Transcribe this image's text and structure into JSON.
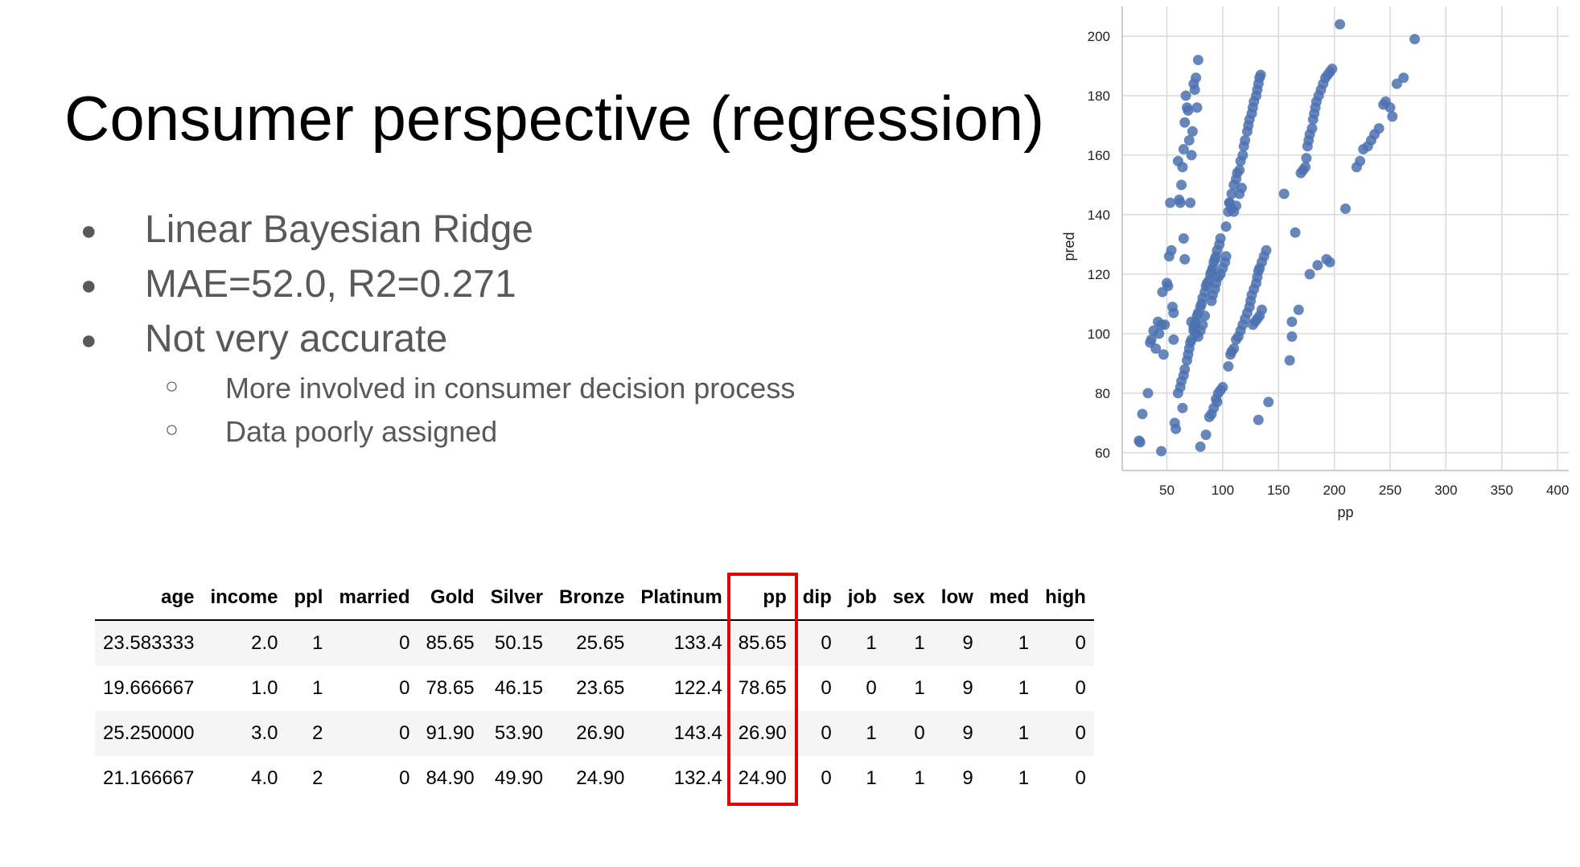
{
  "title": "Consumer perspective (regression)",
  "bullets": [
    {
      "marker": "●",
      "text": "Linear Bayesian Ridge"
    },
    {
      "marker": "●",
      "text": "MAE=52.0, R2=0.271"
    },
    {
      "marker": "●",
      "text": "Not very accurate"
    }
  ],
  "sub_bullets": [
    {
      "marker": "○",
      "text": "More involved in consumer decision process"
    },
    {
      "marker": "○",
      "text": "Data poorly assigned"
    }
  ],
  "table": {
    "columns": [
      "age",
      "income",
      "ppl",
      "married",
      "Gold",
      "Silver",
      "Bronze",
      "Platinum",
      "pp",
      "dip",
      "job",
      "sex",
      "low",
      "med",
      "high"
    ],
    "rows": [
      [
        "23.583333",
        "2.0",
        "1",
        "0",
        "85.65",
        "50.15",
        "25.65",
        "133.4",
        "85.65",
        "0",
        "1",
        "1",
        "9",
        "1",
        "0"
      ],
      [
        "19.666667",
        "1.0",
        "1",
        "0",
        "78.65",
        "46.15",
        "23.65",
        "122.4",
        "78.65",
        "0",
        "0",
        "1",
        "9",
        "1",
        "0"
      ],
      [
        "25.250000",
        "3.0",
        "2",
        "0",
        "91.90",
        "53.90",
        "26.90",
        "143.4",
        "26.90",
        "0",
        "1",
        "0",
        "9",
        "1",
        "0"
      ],
      [
        "21.166667",
        "4.0",
        "2",
        "0",
        "84.90",
        "49.90",
        "24.90",
        "132.4",
        "24.90",
        "0",
        "1",
        "1",
        "9",
        "1",
        "0"
      ]
    ],
    "highlighted_column": "pp",
    "highlight_color": "#e60000"
  },
  "chart_data": {
    "type": "scatter",
    "title": "",
    "xlabel": "pp",
    "ylabel": "pred",
    "xlim": [
      10,
      410
    ],
    "ylim": [
      54,
      210
    ],
    "xticks": [
      50,
      100,
      150,
      200,
      250,
      300,
      350,
      400
    ],
    "yticks": [
      60,
      80,
      100,
      120,
      140,
      160,
      180,
      200
    ],
    "grid": true,
    "point_color": "#4c72b0",
    "series": [
      {
        "points": [
          [
            25,
            64
          ],
          [
            26,
            63.5
          ],
          [
            28,
            73
          ],
          [
            33,
            80
          ],
          [
            35,
            97
          ],
          [
            36,
            98
          ],
          [
            38,
            101
          ],
          [
            40,
            95
          ],
          [
            42,
            104
          ],
          [
            43,
            100
          ],
          [
            45,
            103
          ],
          [
            46,
            114
          ],
          [
            47,
            93
          ],
          [
            48,
            103
          ],
          [
            50,
            117
          ],
          [
            51,
            116
          ],
          [
            52,
            126
          ],
          [
            53,
            144
          ],
          [
            54,
            128
          ],
          [
            55,
            109
          ],
          [
            56,
            107
          ],
          [
            56,
            98
          ],
          [
            57,
            70
          ],
          [
            58,
            68
          ],
          [
            45,
            60.5
          ],
          [
            60,
            158
          ],
          [
            61,
            145
          ],
          [
            62,
            144
          ],
          [
            63,
            150
          ],
          [
            64,
            156
          ],
          [
            65,
            162
          ],
          [
            66,
            171
          ],
          [
            67,
            180
          ],
          [
            68,
            176
          ],
          [
            69,
            175
          ],
          [
            70,
            165
          ],
          [
            71,
            144
          ],
          [
            72,
            160
          ],
          [
            73,
            168
          ],
          [
            74,
            184
          ],
          [
            75,
            182
          ],
          [
            76,
            186
          ],
          [
            77,
            176
          ],
          [
            78,
            192
          ],
          [
            64,
            75
          ],
          [
            65,
            132
          ],
          [
            66,
            125
          ],
          [
            60,
            80
          ],
          [
            62,
            82
          ],
          [
            63,
            84
          ],
          [
            65,
            86
          ],
          [
            66,
            88
          ],
          [
            68,
            91
          ],
          [
            69,
            93
          ],
          [
            70,
            95
          ],
          [
            71,
            97
          ],
          [
            72,
            98
          ],
          [
            74,
            101
          ],
          [
            75,
            103
          ],
          [
            76,
            104
          ],
          [
            77,
            106
          ],
          [
            78,
            107
          ],
          [
            80,
            109
          ],
          [
            81,
            110
          ],
          [
            82,
            112
          ],
          [
            84,
            114
          ],
          [
            85,
            116
          ],
          [
            86,
            117
          ],
          [
            88,
            118
          ],
          [
            89,
            120
          ],
          [
            90,
            121
          ],
          [
            91,
            122
          ],
          [
            92,
            124
          ],
          [
            93,
            125
          ],
          [
            94,
            126
          ],
          [
            95,
            128
          ],
          [
            97,
            130
          ],
          [
            98,
            132
          ],
          [
            72,
            104
          ],
          [
            74,
            102
          ],
          [
            76,
            100
          ],
          [
            78,
            99
          ],
          [
            80,
            101
          ],
          [
            82,
            103
          ],
          [
            84,
            106
          ],
          [
            90,
            111
          ],
          [
            91,
            113
          ],
          [
            93,
            115
          ],
          [
            94,
            117
          ],
          [
            96,
            119
          ],
          [
            98,
            120
          ],
          [
            100,
            122
          ],
          [
            102,
            124
          ],
          [
            103,
            126
          ],
          [
            103,
            136
          ],
          [
            105,
            141
          ],
          [
            106,
            144
          ],
          [
            108,
            147
          ],
          [
            110,
            150
          ],
          [
            112,
            152
          ],
          [
            113,
            154
          ],
          [
            115,
            155
          ],
          [
            116,
            158
          ],
          [
            118,
            160
          ],
          [
            119,
            163
          ],
          [
            120,
            165
          ],
          [
            122,
            168
          ],
          [
            123,
            170
          ],
          [
            124,
            172
          ],
          [
            126,
            174
          ],
          [
            127,
            176
          ],
          [
            128,
            178
          ],
          [
            130,
            180
          ],
          [
            131,
            182
          ],
          [
            132,
            184
          ],
          [
            133,
            186
          ],
          [
            134,
            187
          ],
          [
            106,
            144
          ],
          [
            108,
            142
          ],
          [
            110,
            141
          ],
          [
            112,
            143
          ],
          [
            115,
            147
          ],
          [
            117,
            149
          ],
          [
            80,
            62
          ],
          [
            85,
            66
          ],
          [
            88,
            72
          ],
          [
            90,
            73
          ],
          [
            92,
            75
          ],
          [
            94,
            78
          ],
          [
            96,
            80
          ],
          [
            98,
            81
          ],
          [
            100,
            82
          ],
          [
            95,
            77
          ],
          [
            105,
            89
          ],
          [
            107,
            93
          ],
          [
            108,
            94
          ],
          [
            110,
            95
          ],
          [
            112,
            98
          ],
          [
            114,
            99
          ],
          [
            116,
            101
          ],
          [
            118,
            103
          ],
          [
            120,
            105
          ],
          [
            122,
            107
          ],
          [
            124,
            109
          ],
          [
            125,
            111
          ],
          [
            126,
            113
          ],
          [
            128,
            115
          ],
          [
            130,
            117
          ],
          [
            131,
            119
          ],
          [
            132,
            121
          ],
          [
            133,
            122
          ],
          [
            135,
            124
          ],
          [
            137,
            126
          ],
          [
            139,
            128
          ],
          [
            127,
            103
          ],
          [
            129,
            104
          ],
          [
            131,
            105
          ],
          [
            133,
            106
          ],
          [
            135,
            108
          ],
          [
            132,
            71
          ],
          [
            141,
            77
          ],
          [
            160,
            91
          ],
          [
            162,
            99
          ],
          [
            165,
            134
          ],
          [
            155,
            147
          ],
          [
            170,
            154
          ],
          [
            172,
            155
          ],
          [
            174,
            156
          ],
          [
            175,
            159
          ],
          [
            176,
            163
          ],
          [
            177,
            165
          ],
          [
            178,
            167
          ],
          [
            180,
            169
          ],
          [
            181,
            172
          ],
          [
            182,
            174
          ],
          [
            183,
            176
          ],
          [
            184,
            178
          ],
          [
            186,
            180
          ],
          [
            188,
            182
          ],
          [
            190,
            184
          ],
          [
            192,
            186
          ],
          [
            194,
            187
          ],
          [
            196,
            188
          ],
          [
            198,
            189
          ],
          [
            205,
            204
          ],
          [
            162,
            104
          ],
          [
            168,
            108
          ],
          [
            178,
            120
          ],
          [
            185,
            123
          ],
          [
            193,
            125
          ],
          [
            196,
            124
          ],
          [
            210,
            142
          ],
          [
            220,
            156
          ],
          [
            223,
            158
          ],
          [
            226,
            162
          ],
          [
            230,
            163
          ],
          [
            233,
            165
          ],
          [
            236,
            167
          ],
          [
            240,
            169
          ],
          [
            244,
            177
          ],
          [
            246,
            178
          ],
          [
            250,
            176
          ],
          [
            252,
            173
          ],
          [
            256,
            184
          ],
          [
            262,
            186
          ],
          [
            272,
            199
          ]
        ]
      }
    ]
  }
}
